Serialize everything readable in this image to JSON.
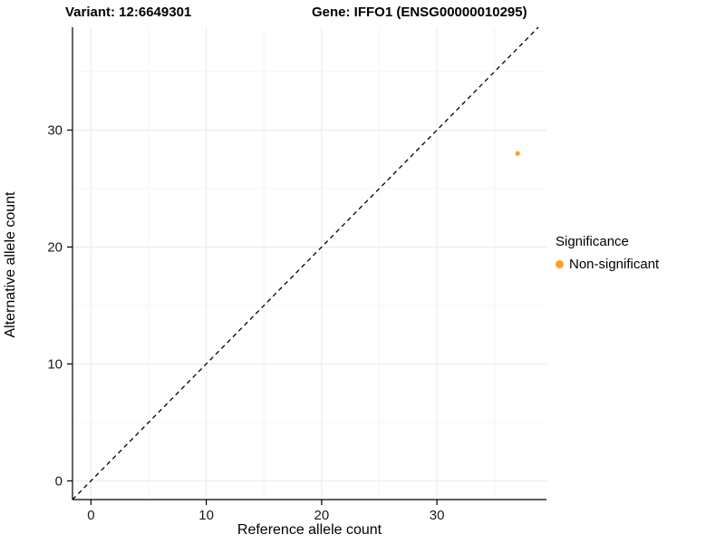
{
  "titles": {
    "variant": "Variant: 12:6649301",
    "gene": "Gene: IFFO1 (ENSG00000010295)"
  },
  "chart_data": {
    "type": "scatter",
    "title_left": "Variant: 12:6649301",
    "title_right": "Gene: IFFO1 (ENSG00000010295)",
    "xlabel": "Reference allele count",
    "ylabel": "Alternative allele count",
    "xlim": [
      -1.6,
      39.5
    ],
    "ylim": [
      -1.6,
      38.8
    ],
    "xticks": [
      0,
      10,
      20,
      30
    ],
    "yticks": [
      0,
      10,
      20,
      30
    ],
    "minor_xticks": [
      5,
      15,
      25,
      35
    ],
    "minor_yticks": [
      5,
      15,
      25,
      35
    ],
    "points": [
      {
        "x": 37,
        "y": 28,
        "series": "Non-significant"
      }
    ],
    "identity_line": {
      "style": "dashed",
      "from": [
        -1.6,
        -1.6
      ],
      "to": [
        38.8,
        38.8
      ],
      "color": "#000000"
    },
    "legend": {
      "title": "Significance",
      "entries": [
        {
          "label": "Non-significant",
          "color": "#FF9E27"
        }
      ],
      "position": "right"
    },
    "grid": true,
    "colors": {
      "grid_major": "#e9e9e9",
      "grid_minor": "#f4f4f4",
      "axis": "#000000",
      "tick_text": "#1a1a1a",
      "panel_bg": "#ffffff"
    }
  }
}
